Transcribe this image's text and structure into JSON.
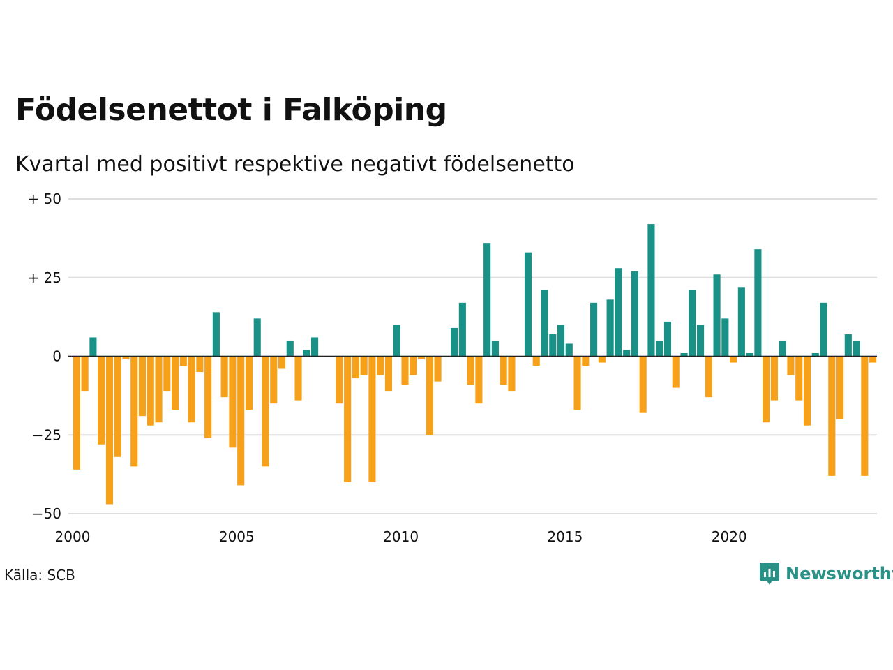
{
  "title": "Födelsenettot i Falköping",
  "subtitle": "Kvartal med positivt respektive negativt födelsenetto",
  "source": "Källa: SCB",
  "brand": "Newsworthy",
  "colors": {
    "positive": "#1a9187",
    "negative": "#f7a11a",
    "grid": "#dddddd",
    "brand": "#2a9187"
  },
  "chart_data": {
    "type": "bar",
    "xlim": [
      2000,
      2024.5
    ],
    "ylim": [
      -50,
      50
    ],
    "yticks": [
      {
        "value": 50,
        "label": "+ 50"
      },
      {
        "value": 25,
        "label": "+ 25"
      },
      {
        "value": 0,
        "label": "0"
      },
      {
        "value": -25,
        "label": "−25"
      },
      {
        "value": -50,
        "label": "−50"
      }
    ],
    "xticks": [
      {
        "value": 2000,
        "label": "2000"
      },
      {
        "value": 2005,
        "label": "2005"
      },
      {
        "value": 2010,
        "label": "2010"
      },
      {
        "value": 2015,
        "label": "2015"
      },
      {
        "value": 2020,
        "label": "2020"
      }
    ],
    "grid": true,
    "legend": "none",
    "start_year": 2000,
    "values": [
      -36,
      -11,
      6,
      -28,
      -47,
      -32,
      -1,
      -35,
      -19,
      -22,
      -21,
      -11,
      -17,
      -3,
      -21,
      -5,
      -26,
      14,
      -13,
      -29,
      -41,
      -17,
      12,
      -35,
      -15,
      -4,
      5,
      -14,
      2,
      6,
      0,
      0,
      -15,
      -40,
      -7,
      -6,
      -40,
      -6,
      -11,
      10,
      -9,
      -6,
      -1,
      -25,
      -8,
      0,
      9,
      17,
      -9,
      -15,
      36,
      5,
      -9,
      -11,
      0,
      33,
      -3,
      21,
      7,
      10,
      4,
      -17,
      -3,
      17,
      -2,
      18,
      28,
      2,
      27,
      -18,
      42,
      5,
      11,
      -10,
      1,
      21,
      10,
      -13,
      26,
      12,
      -2,
      22,
      1,
      34,
      -21,
      -14,
      5,
      -6,
      -14,
      -22,
      1,
      17,
      -38,
      -20,
      7,
      5,
      -38,
      -2
    ]
  }
}
